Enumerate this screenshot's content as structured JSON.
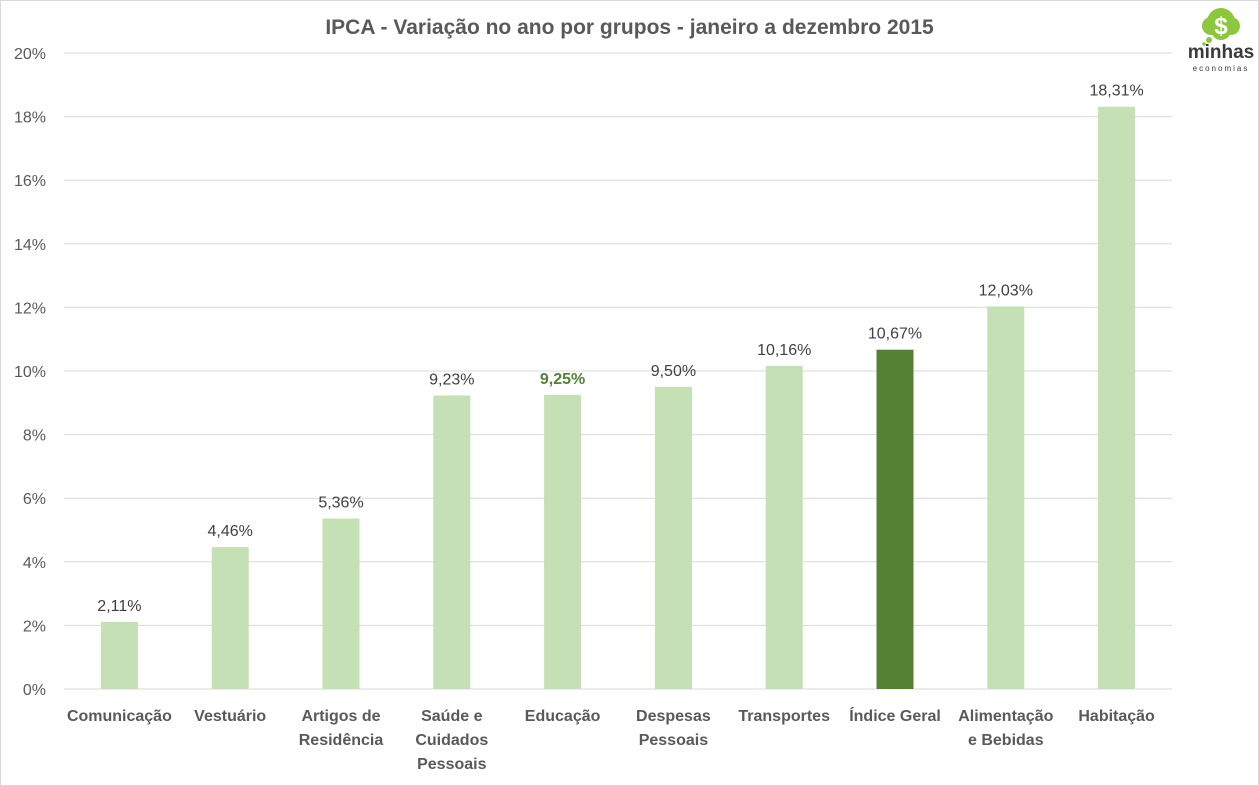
{
  "chart_data": {
    "type": "bar",
    "title": "IPCA - Variação no ano por grupos - janeiro a dezembro 2015",
    "xlabel": "",
    "ylabel": "",
    "ylim": [
      0,
      20
    ],
    "yticks": [
      0,
      2,
      4,
      6,
      8,
      10,
      12,
      14,
      16,
      18,
      20
    ],
    "ytick_labels": [
      "0%",
      "2%",
      "4%",
      "6%",
      "8%",
      "10%",
      "12%",
      "14%",
      "16%",
      "18%",
      "20%"
    ],
    "grid": true,
    "legend": "none",
    "categories": [
      [
        "Comunicação"
      ],
      [
        "Vestuário"
      ],
      [
        "Artigos de",
        "Residência"
      ],
      [
        "Saúde e",
        "Cuidados",
        "Pessoais"
      ],
      [
        "Educação"
      ],
      [
        "Despesas",
        "Pessoais"
      ],
      [
        "Transportes"
      ],
      [
        "Índice Geral"
      ],
      [
        "Alimentação",
        "e Bebidas"
      ],
      [
        "Habitação"
      ]
    ],
    "values": [
      2.11,
      4.46,
      5.36,
      9.23,
      9.25,
      9.5,
      10.16,
      10.67,
      12.03,
      18.31
    ],
    "data_labels": [
      "2,11%",
      "4,46%",
      "5,36%",
      "9,23%",
      "9,25%",
      "9,50%",
      "10,16%",
      "10,67%",
      "12,03%",
      "18,31%"
    ],
    "highlight_bar_index": 7,
    "highlight_label_index": 4,
    "colors": {
      "bar": "#c5e0b4",
      "highlight_bar": "#548235",
      "highlight_label": "#548235",
      "grid": "#d9d9d9",
      "text": "#595959"
    }
  },
  "logo": {
    "name": "minhas",
    "sub": "economias",
    "symbol": "$"
  }
}
